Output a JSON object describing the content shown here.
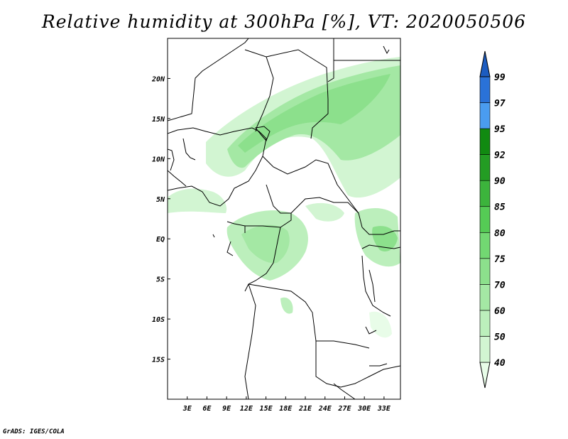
{
  "title": "Relative humidity at 300hPa [%], VT: 2020050506",
  "credit": "GrADS: IGES/COLA",
  "map": {
    "variable": "Relative humidity",
    "level": "300hPa",
    "units": "%",
    "valid_time": "2020050506",
    "lon_range": [
      0,
      35.5
    ],
    "lat_range": [
      -20,
      25
    ],
    "lat_ticks": [
      {
        "value": 20,
        "label": "20N"
      },
      {
        "value": 15,
        "label": "15N"
      },
      {
        "value": 10,
        "label": "10N"
      },
      {
        "value": 5,
        "label": "5N"
      },
      {
        "value": 0,
        "label": "EQ"
      },
      {
        "value": -5,
        "label": "5S"
      },
      {
        "value": -10,
        "label": "10S"
      },
      {
        "value": -15,
        "label": "15S"
      }
    ],
    "lon_ticks": [
      {
        "value": 3,
        "label": "3E"
      },
      {
        "value": 6,
        "label": "6E"
      },
      {
        "value": 9,
        "label": "9E"
      },
      {
        "value": 12,
        "label": "12E"
      },
      {
        "value": 15,
        "label": "15E"
      },
      {
        "value": 18,
        "label": "18E"
      },
      {
        "value": 21,
        "label": "21E"
      },
      {
        "value": 24,
        "label": "24E"
      },
      {
        "value": 27,
        "label": "27E"
      },
      {
        "value": 30,
        "label": "30E"
      },
      {
        "value": 33,
        "label": "33E"
      }
    ]
  },
  "colorbar": {
    "levels": [
      "40",
      "50",
      "60",
      "70",
      "75",
      "80",
      "85",
      "90",
      "92",
      "95",
      "97",
      "99"
    ],
    "colors": [
      "#e8fce8",
      "#d2f5d2",
      "#bcefbc",
      "#a4e8a4",
      "#8ce08c",
      "#72d872",
      "#55cb55",
      "#3cb43c",
      "#239c23",
      "#118a11",
      "#4a9cf0",
      "#2a72d8",
      "#1c5cc0"
    ]
  }
}
